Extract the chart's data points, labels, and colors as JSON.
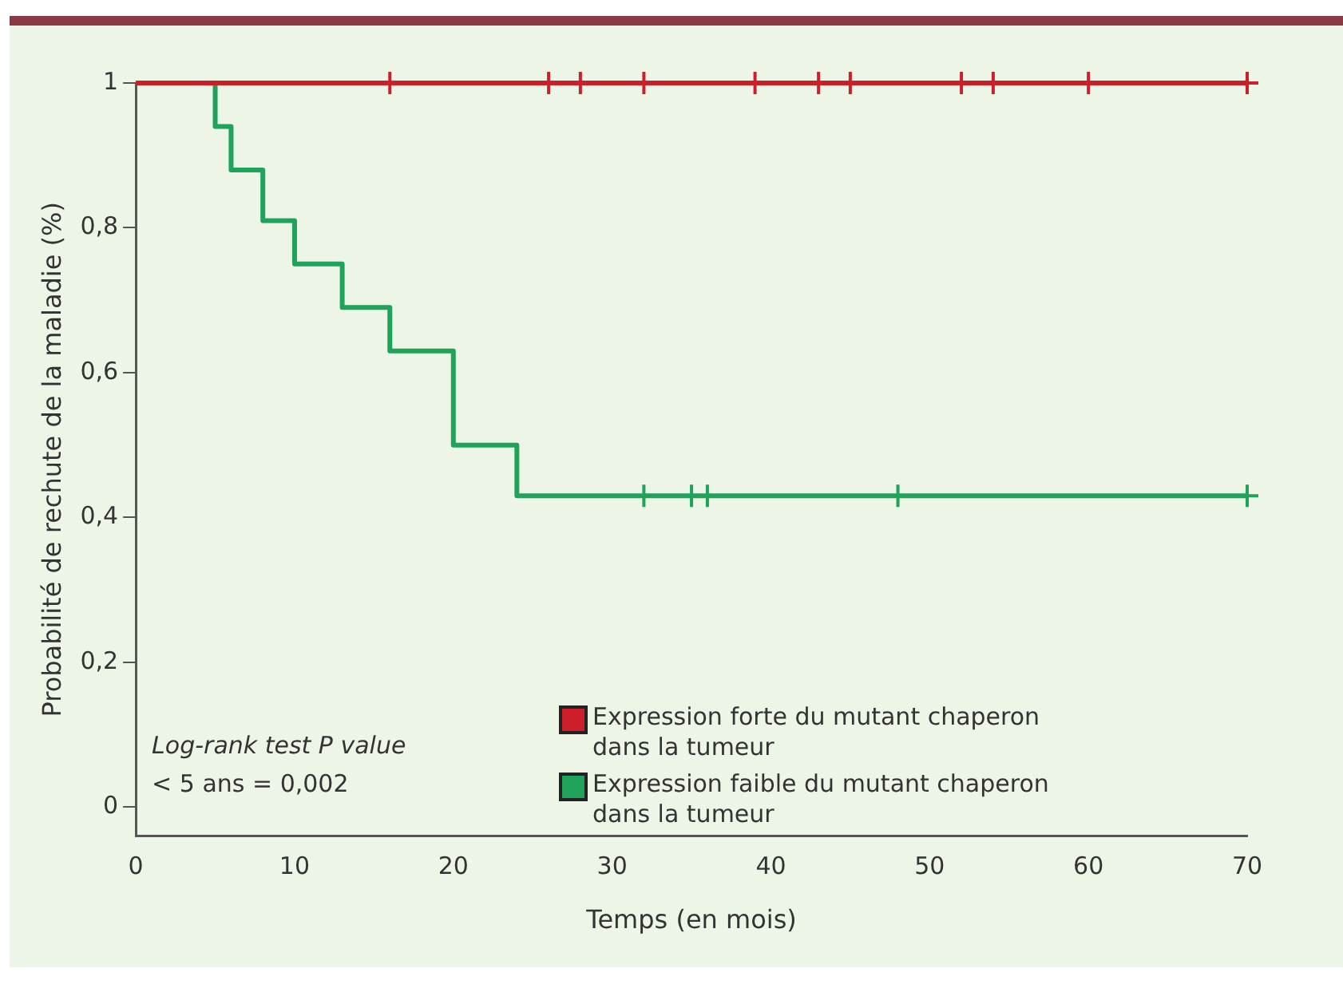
{
  "chart_data": {
    "type": "step",
    "xlabel": "Temps (en mois)",
    "ylabel": "Probabilité de rechute de la maladie (%)",
    "xlim": [
      0,
      70
    ],
    "xticks": [
      0,
      10,
      20,
      30,
      40,
      50,
      60,
      70
    ],
    "ylim": [
      -0.04,
      1
    ],
    "yticks": [
      0,
      {
        "value": 0.2,
        "label": "0,2"
      },
      {
        "value": 0.4,
        "label": "0,4"
      },
      {
        "value": 0.6,
        "label": "0,6"
      },
      {
        "value": 0.8,
        "label": "0,8"
      },
      1
    ],
    "grid": false,
    "legend": "bottom right",
    "series": [
      {
        "name": "Expression forte du mutant chaperon dans la tumeur",
        "color": "#cc1f2a",
        "marker": "none",
        "x": [
          0,
          70
        ],
        "values": [
          1,
          1
        ]
      },
      {
        "name": "Expression faible du mutant chaperon dans la tumeur",
        "color": "#1fa35a",
        "marker": "none",
        "x": [
          0,
          5,
          6,
          8,
          10,
          13,
          16,
          20,
          24,
          70
        ],
        "values": [
          1,
          0.94,
          0.88,
          0.81,
          0.75,
          0.69,
          0.63,
          0.5,
          0.43,
          0.43
        ]
      },
      {
        "type": "scatter",
        "color": "#cc1f2a",
        "marker": "cross",
        "x": [
          16,
          26,
          28,
          32,
          39,
          43,
          45,
          52,
          54,
          60,
          70
        ],
        "values": [
          1,
          1,
          1,
          1,
          1,
          1,
          1,
          1,
          1,
          1,
          1
        ]
      },
      {
        "type": "scatter",
        "color": "#1fa35a",
        "marker": "cross",
        "x": [
          32,
          35,
          36,
          48,
          70
        ],
        "values": [
          0.43,
          0.43,
          0.43,
          0.43,
          0.43
        ]
      }
    ],
    "annotations": [
      "Log-rank test P value",
      "< 5 ans = 0,002"
    ]
  }
}
